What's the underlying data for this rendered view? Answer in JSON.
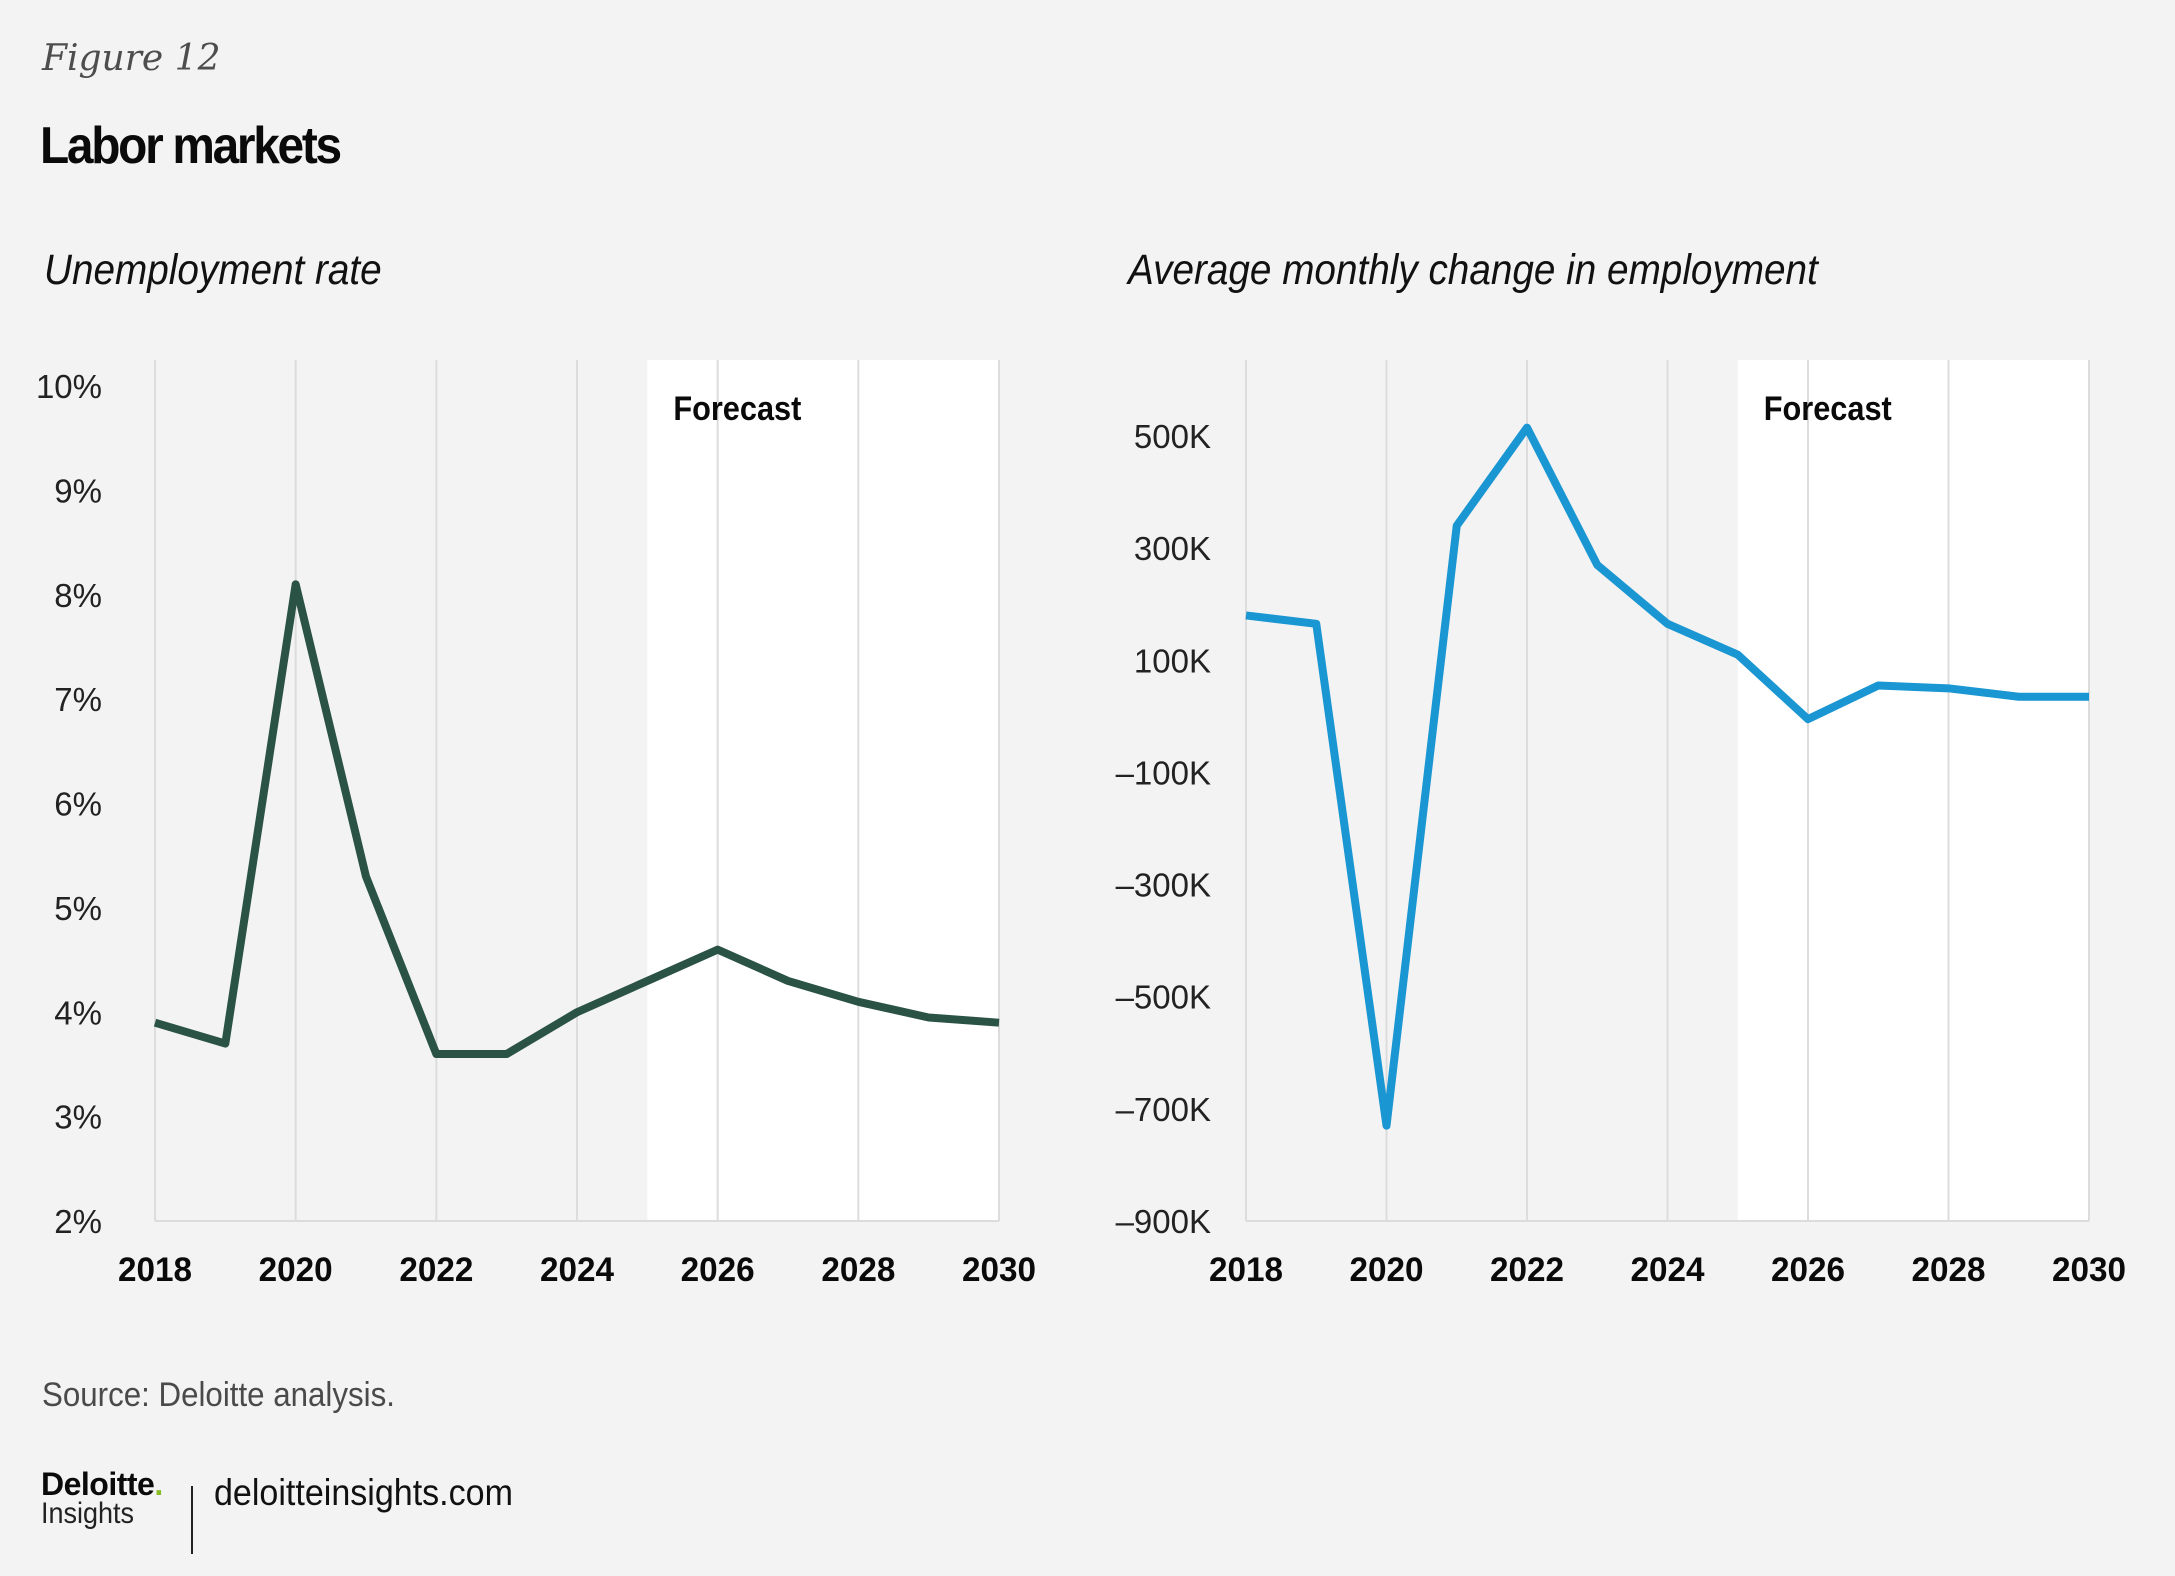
{
  "figure_label": "Figure 12",
  "title": "Labor markets",
  "source": "Source: Deloitte analysis.",
  "branding": {
    "brand": "Deloitte",
    "brand_dot": ".",
    "sub": "Insights",
    "url": "deloitteinsights.com"
  },
  "colors": {
    "background": "#f3f3f3",
    "forecast_band": "#ffffff",
    "gridline": "#dcdcdc",
    "unemployment_line": "#2a5245",
    "employment_line": "#1a96d2",
    "brand_dot": "#86bc25"
  },
  "chart_data": [
    {
      "type": "line",
      "title": "Unemployment rate",
      "xlabel": "",
      "ylabel": "",
      "x": [
        2018,
        2019,
        2020,
        2021,
        2022,
        2023,
        2024,
        2025,
        2026,
        2027,
        2028,
        2029,
        2030
      ],
      "series": [
        {
          "name": "Unemployment rate",
          "values": [
            3.9,
            3.7,
            8.1,
            5.3,
            3.6,
            3.6,
            4.0,
            4.3,
            4.6,
            4.3,
            4.1,
            3.95,
            3.9
          ]
        }
      ],
      "xlim": [
        2018,
        2030
      ],
      "ylim": [
        2,
        10
      ],
      "x_ticks": [
        2018,
        2020,
        2022,
        2024,
        2026,
        2028,
        2030
      ],
      "x_tick_labels": [
        "2018",
        "2020",
        "2022",
        "2024",
        "2026",
        "2028",
        "2030"
      ],
      "y_ticks": [
        2,
        3,
        4,
        5,
        6,
        7,
        8,
        9,
        10
      ],
      "y_tick_labels": [
        "2%",
        "3%",
        "4%",
        "5%",
        "6%",
        "7%",
        "8%",
        "9%",
        "10%"
      ],
      "forecast_start": 2025,
      "forecast_label": "Forecast",
      "grid": "vertical",
      "legend": "none"
    },
    {
      "type": "line",
      "title": "Average monthly change in employment",
      "xlabel": "",
      "ylabel": "",
      "x": [
        2018,
        2019,
        2020,
        2021,
        2022,
        2023,
        2024,
        2025,
        2026,
        2027,
        2028,
        2029,
        2030
      ],
      "series": [
        {
          "name": "Average monthly change in employment",
          "values": [
            180000,
            165000,
            -730000,
            340000,
            515000,
            270000,
            165000,
            110000,
            -5000,
            55000,
            50000,
            35000,
            35000
          ]
        }
      ],
      "xlim": [
        2018,
        2030
      ],
      "ylim": [
        -900000,
        500000
      ],
      "x_ticks": [
        2018,
        2020,
        2022,
        2024,
        2026,
        2028,
        2030
      ],
      "x_tick_labels": [
        "2018",
        "2020",
        "2022",
        "2024",
        "2026",
        "2028",
        "2030"
      ],
      "y_ticks": [
        -900000,
        -700000,
        -500000,
        -300000,
        -100000,
        100000,
        300000,
        500000
      ],
      "y_tick_labels": [
        "–900K",
        "–700K",
        "–500K",
        "–300K",
        "–100K",
        "100K",
        "300K",
        "500K"
      ],
      "forecast_start": 2025,
      "forecast_label": "Forecast",
      "grid": "vertical",
      "legend": "none"
    }
  ]
}
